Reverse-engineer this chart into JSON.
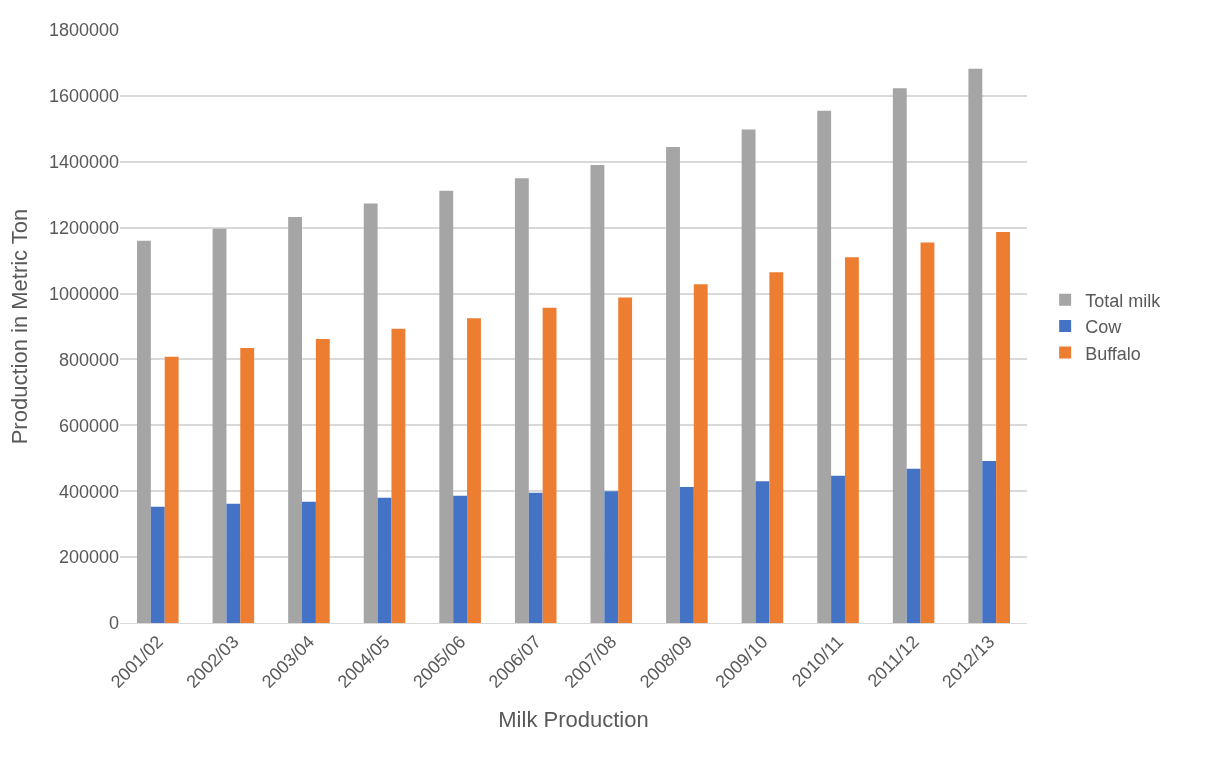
{
  "chart_data": {
    "type": "bar",
    "xlabel": "Milk Production",
    "ylabel": "Production in Metric Ton",
    "categories": [
      "2001/02",
      "2002/03",
      "2003/04",
      "2004/05",
      "2005/06",
      "2006/07",
      "2007/08",
      "2008/09",
      "2009/10",
      "2010/11",
      "2011/12",
      "2012/13"
    ],
    "series": [
      {
        "name": "Total milk",
        "color": "#a5a5a5",
        "values": [
          1160000,
          1197000,
          1232000,
          1273000,
          1312000,
          1350000,
          1390000,
          1445000,
          1498000,
          1555000,
          1623000,
          1682000
        ]
      },
      {
        "name": "Cow",
        "color": "#4472c4",
        "values": [
          353000,
          362000,
          368000,
          380000,
          386000,
          395000,
          400000,
          413000,
          430000,
          447000,
          468000,
          492000
        ]
      },
      {
        "name": "Buffalo",
        "color": "#ed7d31",
        "values": [
          808000,
          835000,
          862000,
          893000,
          925000,
          957000,
          988000,
          1028000,
          1065000,
          1110000,
          1155000,
          1187000
        ]
      }
    ],
    "ylim": [
      0,
      1800000
    ],
    "yticks": [
      0,
      200000,
      400000,
      600000,
      800000,
      1000000,
      1200000,
      1400000,
      1600000,
      1800000
    ],
    "grid": "y",
    "legend": "right"
  }
}
